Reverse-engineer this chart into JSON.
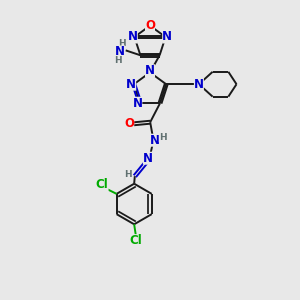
{
  "bg_color": "#e8e8e8",
  "fig_size": [
    3.0,
    3.0
  ],
  "dpi": 100,
  "atom_colors": {
    "N": "#0000cc",
    "O": "#ff0000",
    "Cl": "#00aa00",
    "C": "#1a1a1a",
    "H": "#607070"
  },
  "bond_color": "#1a1a1a",
  "bond_width": 1.4,
  "font_size_atom": 8.5,
  "font_size_small": 6.5,
  "xlim": [
    1.5,
    8.5
  ],
  "ylim": [
    0.5,
    9.5
  ]
}
